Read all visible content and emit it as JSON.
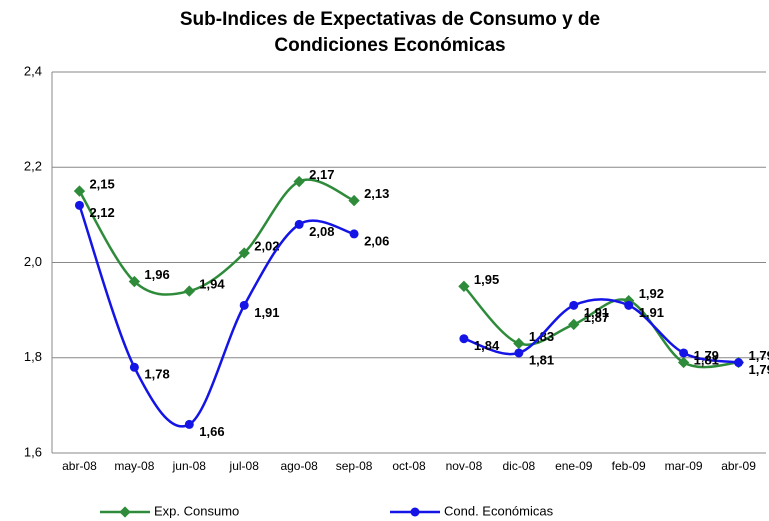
{
  "chart_data": {
    "type": "line",
    "title": [
      "Sub-Indices de Expectativas de Consumo y de",
      "Condiciones Económicas"
    ],
    "categories": [
      "abr-08",
      "may-08",
      "jun-08",
      "jul-08",
      "ago-08",
      "sep-08",
      "oct-08",
      "nov-08",
      "dic-08",
      "ene-09",
      "feb-09",
      "mar-09",
      "abr-09"
    ],
    "series": [
      {
        "name": "Exp. Consumo",
        "color": "#2e8b3a",
        "values": [
          2.15,
          1.96,
          1.94,
          2.02,
          2.17,
          2.13,
          null,
          1.95,
          1.83,
          1.87,
          1.92,
          1.79,
          1.79
        ],
        "value_labels": [
          "2,15",
          "1,96",
          "1,94",
          "2,02",
          "2,17",
          "2,13",
          null,
          "1,95",
          "1,83",
          "1,87",
          "1,92",
          "1,79",
          "1,79"
        ]
      },
      {
        "name": "Cond. Económicas",
        "color": "#1414e6",
        "values": [
          2.12,
          1.78,
          1.66,
          1.91,
          2.08,
          2.06,
          null,
          1.84,
          1.81,
          1.91,
          1.91,
          1.81,
          1.79
        ],
        "value_labels": [
          "2,12",
          "1,78",
          "1,66",
          "1,91",
          "2,08",
          "2,06",
          null,
          "1,84",
          "1,81",
          "1,91",
          "1,91",
          "1,81",
          "1,79"
        ]
      }
    ],
    "ylim": [
      1.6,
      2.4
    ],
    "yticks": [
      {
        "value": 1.6,
        "label": "1,6"
      },
      {
        "value": 1.8,
        "label": "1,8"
      },
      {
        "value": 2.0,
        "label": "2,0"
      },
      {
        "value": 2.2,
        "label": "2,2"
      },
      {
        "value": 2.4,
        "label": "2,4"
      }
    ],
    "grid": true,
    "smooth": true,
    "legend": "bottom"
  }
}
